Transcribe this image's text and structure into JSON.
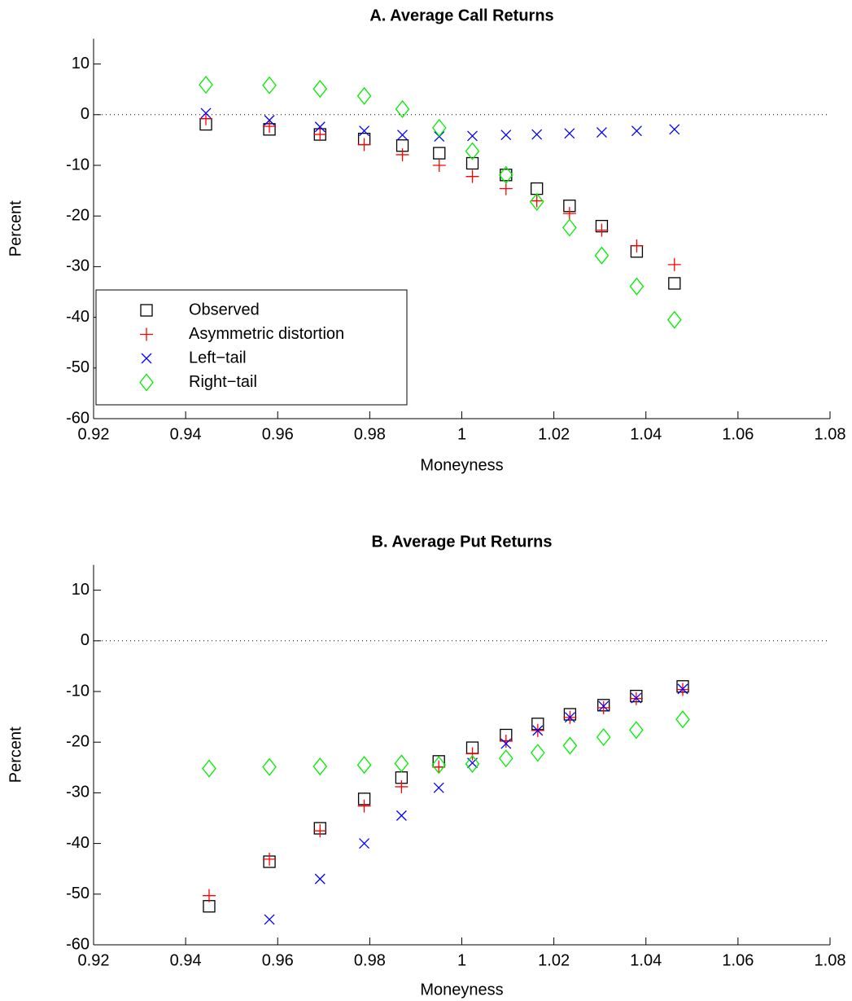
{
  "chart_data": [
    {
      "type": "scatter",
      "title": "A. Average Call Returns",
      "xlabel": "Moneyness",
      "ylabel": "Percent",
      "x": [
        0.9444,
        0.9582,
        0.9692,
        0.9788,
        0.9871,
        0.9951,
        1.0023,
        1.0096,
        1.0163,
        1.0234,
        1.0304,
        1.038,
        1.0462
      ],
      "series": [
        {
          "name": "Observed",
          "color": "#000000",
          "marker": "square",
          "values": [
            -1.9,
            -2.9,
            -3.9,
            -4.8,
            -6.1,
            -7.6,
            -9.6,
            -11.9,
            -14.6,
            -18.0,
            -22.0,
            -27.0,
            -33.3
          ]
        },
        {
          "name": "Asymmetric distortion",
          "color": "#ff0000",
          "marker": "plus",
          "values": [
            -0.8,
            -2.3,
            -3.9,
            -5.9,
            -7.9,
            -10.0,
            -12.2,
            -14.6,
            -17.0,
            -19.5,
            -22.8,
            -25.9,
            -29.6
          ]
        },
        {
          "name": "Left−tail",
          "color": "#0000ff",
          "marker": "x",
          "values": [
            0.3,
            -1.1,
            -2.4,
            -3.2,
            -4.0,
            -4.3,
            -4.2,
            -4.0,
            -3.9,
            -3.7,
            -3.5,
            -3.2,
            -2.9
          ]
        },
        {
          "name": "Right−tail",
          "color": "#00ee00",
          "marker": "diamond",
          "values": [
            5.9,
            5.8,
            5.1,
            3.7,
            1.1,
            -2.6,
            -7.2,
            -11.9,
            -17.2,
            -22.3,
            -27.8,
            -33.9,
            -40.5
          ]
        }
      ],
      "xlim": [
        0.92,
        1.08
      ],
      "xticks": [
        0.92,
        0.94,
        0.96,
        0.98,
        1,
        1.02,
        1.04,
        1.06,
        1.08
      ],
      "ylim": [
        -60,
        15
      ],
      "yticks": [
        -60,
        -50,
        -40,
        -30,
        -20,
        -10,
        0,
        10
      ],
      "zero_line": true,
      "legend": "lower left"
    },
    {
      "type": "scatter",
      "title": "B. Average Put Returns",
      "xlabel": "Moneyness",
      "ylabel": "Percent",
      "x": [
        0.9451,
        0.9582,
        0.9692,
        0.9788,
        0.9869,
        0.995,
        1.0023,
        1.0096,
        1.0165,
        1.0235,
        1.0308,
        1.0379,
        1.048
      ],
      "series": [
        {
          "name": "Observed",
          "color": "#000000",
          "marker": "square",
          "values": [
            -52.4,
            -43.6,
            -37.0,
            -31.2,
            -27.0,
            -23.8,
            -21.1,
            -18.6,
            -16.4,
            -14.5,
            -12.7,
            -10.9,
            -9.0
          ]
        },
        {
          "name": "Asymmetric distortion",
          "color": "#ff0000",
          "marker": "plus",
          "values": [
            -50.3,
            -43.1,
            -37.5,
            -32.6,
            -28.8,
            -24.9,
            -22.3,
            -19.8,
            -17.7,
            -15.1,
            -13.2,
            -11.4,
            -9.6
          ]
        },
        {
          "name": "Left−tail",
          "color": "#0000ff",
          "marker": "x",
          "values": [
            null,
            -55.0,
            -47.0,
            -40.0,
            -34.5,
            -29.0,
            -24.1,
            -20.3,
            -17.7,
            -15.1,
            -12.9,
            -11.3,
            -9.5
          ]
        },
        {
          "name": "Right−tail",
          "color": "#00ee00",
          "marker": "diamond",
          "values": [
            -25.2,
            -24.9,
            -24.8,
            -24.5,
            -24.2,
            -24.5,
            -24.3,
            -23.2,
            -22.1,
            -20.7,
            -19.0,
            -17.6,
            -15.5
          ]
        }
      ],
      "xlim": [
        0.92,
        1.08
      ],
      "xticks": [
        0.92,
        0.94,
        0.96,
        0.98,
        1,
        1.02,
        1.04,
        1.06,
        1.08
      ],
      "ylim": [
        -60,
        15
      ],
      "yticks": [
        -60,
        -50,
        -40,
        -30,
        -20,
        -10,
        0,
        10
      ],
      "zero_line": true
    }
  ]
}
